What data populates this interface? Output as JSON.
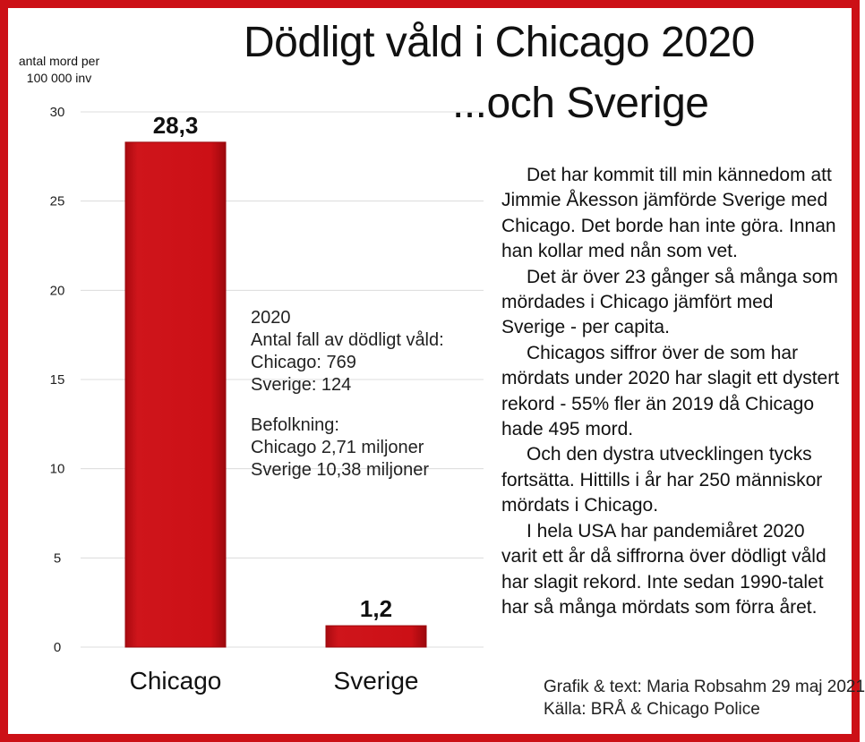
{
  "chart_data": {
    "type": "bar",
    "title": "Dödligt våld i Chicago 2020",
    "subtitle": "...och Sverige",
    "ylabel": "antal mord per 100 000 inv",
    "xlabel": "",
    "categories": [
      "Chicago",
      "Sverige"
    ],
    "values": [
      28.3,
      1.2
    ],
    "value_labels": [
      "28,3",
      "1,2"
    ],
    "ylim": [
      0,
      30
    ],
    "yticks": [
      "0",
      "5",
      "10",
      "15",
      "20",
      "25",
      "30"
    ],
    "ytick_values": [
      0,
      5,
      10,
      15,
      20,
      25,
      30
    ],
    "grid": true,
    "bar_color": "#cc1016"
  },
  "info": {
    "lines": [
      "2020",
      "Antal fall av dödligt våld:",
      "Chicago: 769",
      "Sverige: 124"
    ]
  },
  "population": {
    "lines": [
      "Befolkning:",
      "Chicago 2,71 miljoner",
      "Sverige 10,38 miljoner"
    ]
  },
  "article": {
    "paragraphs": [
      "Det har kommit till min kännedom att Jimmie Åkesson jämförde Sverige med Chicago. Det borde han inte göra. Innan han kollar med nån som vet.",
      "Det är över 23 gånger så många som mördades i Chicago jämfört med Sverige - per capita.",
      "Chicagos siffror över de som har mördats under 2020 har slagit ett dystert rekord - 55% fler än 2019 då Chicago hade 495 mord.",
      "Och den dystra utvecklingen tycks fortsätta. Hittills i år har 250 människor mördats i Chicago.",
      "I hela USA har pandemiåret 2020 varit ett år då siffrorna över dödligt våld har slagit rekord. Inte sedan 1990-talet har så många mördats som förra året."
    ]
  },
  "credits": {
    "graphic": "Grafik & text:  Maria Robsahm 29 maj 2021",
    "source": "Källa:  BRÅ & Chicago Police"
  },
  "colors": {
    "frame": "#cc1016",
    "bar": "#cc1016"
  }
}
